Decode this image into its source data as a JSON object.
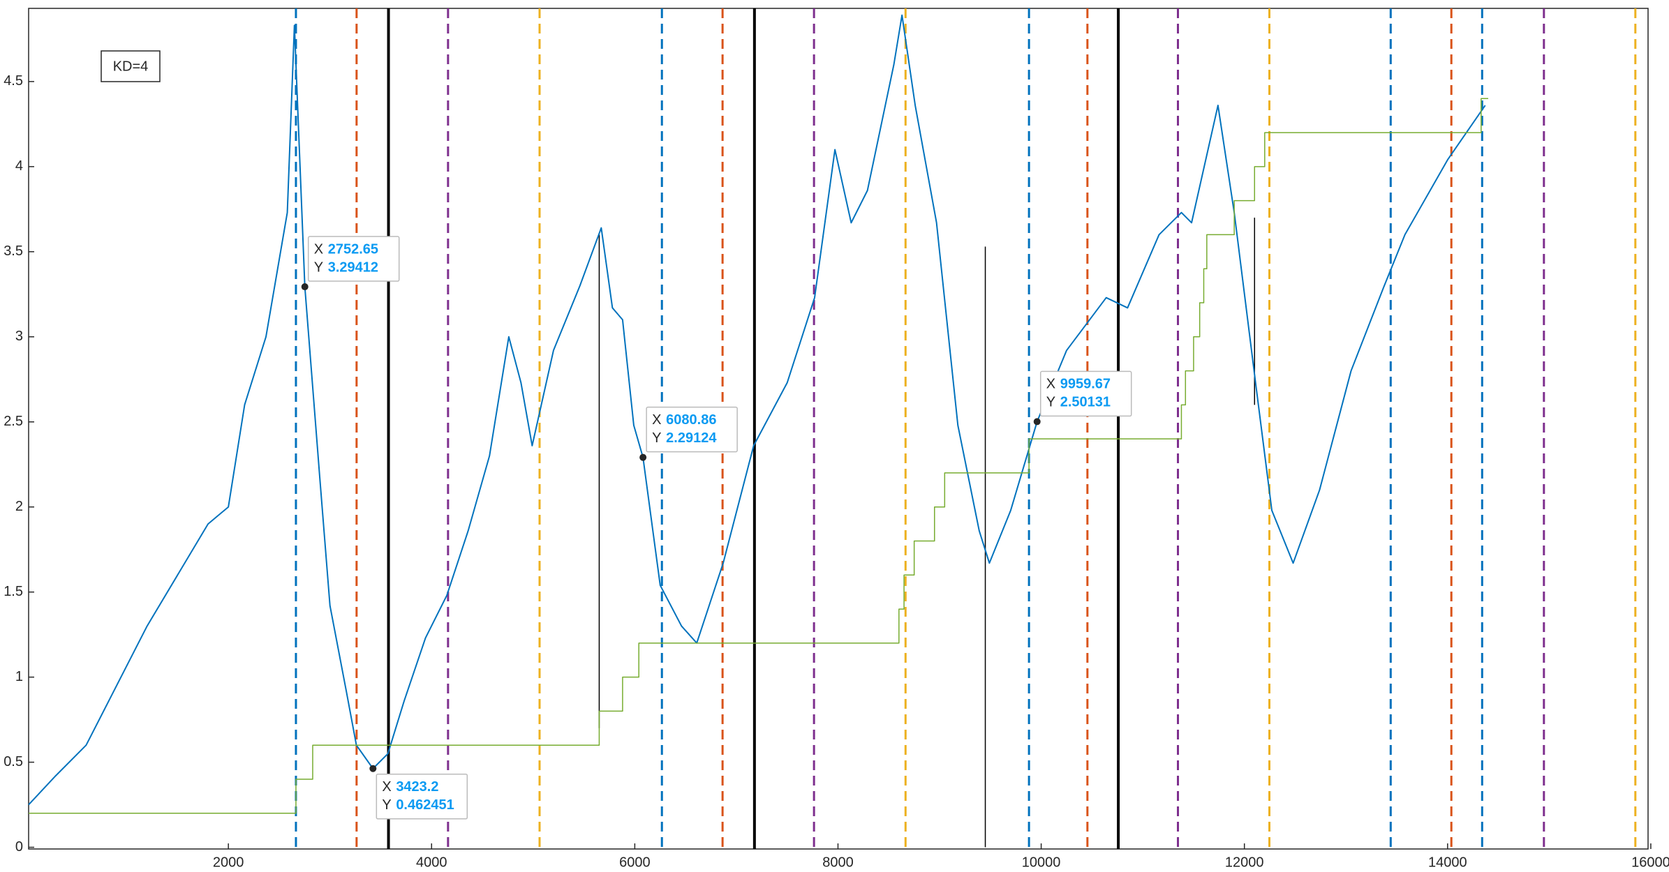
{
  "chart_data": {
    "type": "line",
    "annotation": "KD=4",
    "xlim": [
      34,
      15973
    ],
    "ylim": [
      -0.01,
      4.93
    ],
    "xticks": [
      2000,
      4000,
      6000,
      8000,
      10000,
      12000,
      14000,
      16000
    ],
    "yticks": [
      0,
      0.5,
      1,
      1.5,
      2,
      2.5,
      3,
      3.5,
      4,
      4.5
    ],
    "series": [
      {
        "color": "#0072BD",
        "x": [
          34,
          300,
          600,
          900,
          1200,
          1500,
          1800,
          1900,
          2000,
          2160,
          2370,
          2580,
          2650,
          2752.65,
          2900,
          3000,
          3160,
          3260,
          3423.2,
          3570,
          3730,
          3940,
          4150,
          4360,
          4570,
          4760,
          4880,
          4990,
          5200,
          5460,
          5670,
          5780,
          5880,
          5990,
          6080.86,
          6250,
          6460,
          6610,
          6870,
          7170,
          7500,
          7770,
          7970,
          8130,
          8290,
          8550,
          8630,
          8760,
          8970,
          9180,
          9390,
          9490,
          9700,
          9959.67,
          10250,
          10640,
          10850,
          11160,
          11380,
          11480,
          11740,
          11900,
          12110,
          12270,
          12480,
          12740,
          13050,
          13370,
          13580,
          14000,
          14370
        ],
        "values": [
          0.25,
          0.42,
          0.6,
          0.95,
          1.3,
          1.6,
          1.9,
          1.95,
          2.0,
          2.6,
          3.0,
          3.73,
          4.83,
          3.29412,
          2.17,
          1.42,
          0.92,
          0.6,
          0.462451,
          0.55,
          0.86,
          1.23,
          1.48,
          1.86,
          2.3,
          3.0,
          2.73,
          2.36,
          2.92,
          3.3,
          3.64,
          3.17,
          3.1,
          2.48,
          2.29124,
          1.54,
          1.3,
          1.2,
          1.67,
          2.36,
          2.73,
          3.23,
          4.1,
          3.67,
          3.86,
          4.6,
          4.89,
          4.36,
          3.67,
          2.48,
          1.86,
          1.67,
          1.98,
          2.50131,
          2.92,
          3.23,
          3.17,
          3.6,
          3.73,
          3.67,
          4.36,
          3.73,
          2.73,
          1.98,
          1.67,
          2.1,
          2.8,
          3.29,
          3.6,
          4.04,
          4.36
        ]
      },
      {
        "color": "#77AC30",
        "step": true,
        "x": [
          34,
          2665,
          2830,
          5650,
          5880,
          6040,
          8600,
          8650,
          8750,
          8950,
          9050,
          9100,
          9880,
          11380,
          11420,
          11500,
          11560,
          11600,
          11630,
          11900,
          12100,
          12200,
          14330,
          14400
        ],
        "values": [
          0.2,
          0.4,
          0.6,
          0.8,
          1.0,
          1.2,
          1.4,
          1.6,
          1.8,
          2.0,
          2.2,
          2.2,
          2.4,
          2.6,
          2.8,
          3.0,
          3.2,
          3.4,
          3.6,
          3.8,
          4.0,
          4.2,
          4.4,
          4.4
        ]
      }
    ],
    "segments": [
      {
        "color": "#000000",
        "x": 5650,
        "values": [
          0.7,
          3.6
        ]
      },
      {
        "color": "#000000",
        "x": 9450,
        "values": [
          0,
          3.53
        ]
      },
      {
        "color": "#000000",
        "x": 12100,
        "values": [
          2.6,
          3.7
        ]
      }
    ],
    "vlines": [
      {
        "color": "#0072BD",
        "dashed": true,
        "x": [
          2665,
          6267,
          9880,
          13440,
          14340
        ]
      },
      {
        "color": "#D95319",
        "dashed": true,
        "x": [
          3262,
          6864,
          10455,
          14037
        ]
      },
      {
        "color": "#000000",
        "dashed": false,
        "x": [
          3576,
          7178,
          10759
        ]
      },
      {
        "color": "#7E2F8E",
        "dashed": true,
        "x": [
          4162,
          7764,
          11346,
          14948
        ]
      },
      {
        "color": "#EDB120",
        "dashed": true,
        "x": [
          5063,
          8665,
          12246,
          15848
        ]
      }
    ],
    "datatip_labels": [
      "X",
      "Y"
    ],
    "datatips": [
      {
        "x": 2752.65,
        "y": 3.29412
      },
      {
        "x": 3423.2,
        "y": 0.462451
      },
      {
        "x": 6080.86,
        "y": 2.29124
      },
      {
        "x": 9959.67,
        "y": 2.50131
      }
    ]
  }
}
